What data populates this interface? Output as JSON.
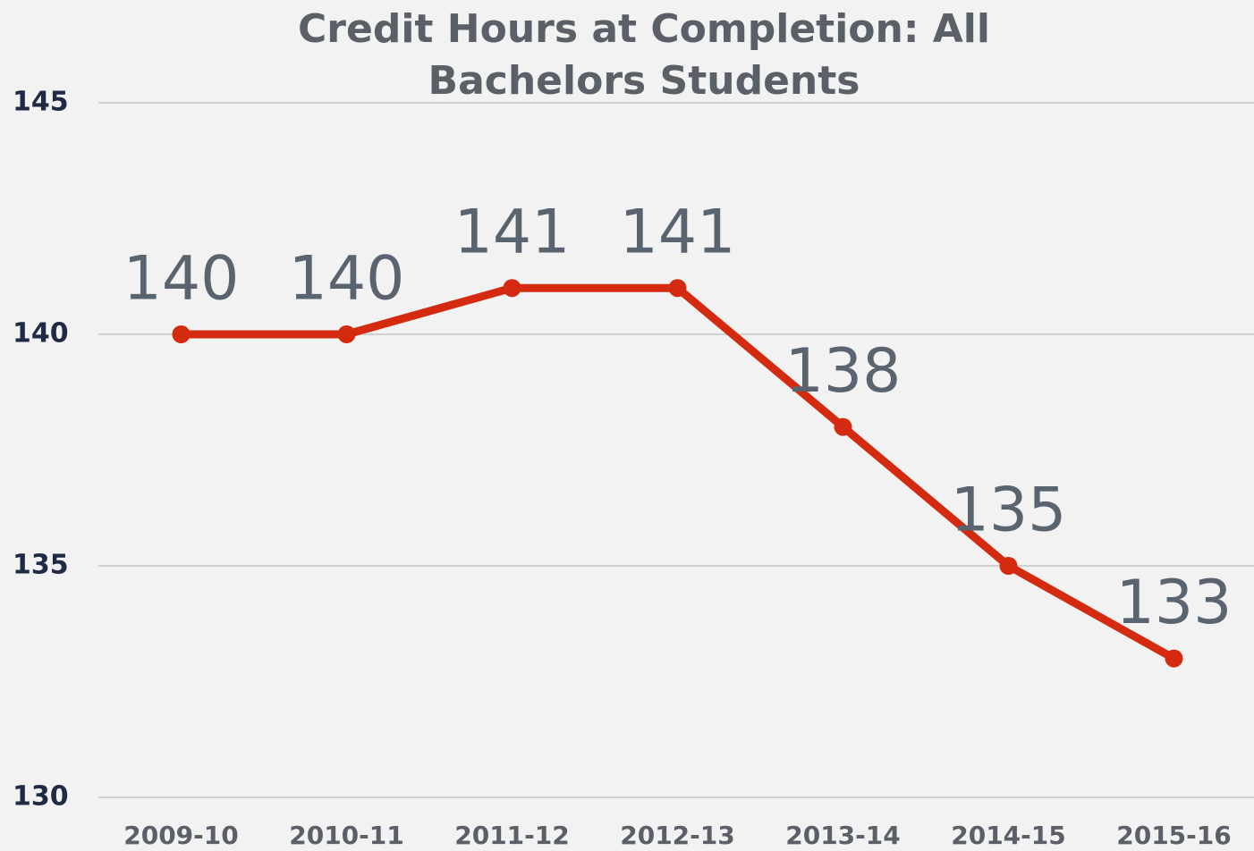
{
  "chart_data": {
    "type": "line",
    "title": "Credit Hours at Completion: All Bachelors Students",
    "categories": [
      "2009-10",
      "2010-11",
      "2011-12",
      "2012-13",
      "2013-14",
      "2014-15",
      "2015-16"
    ],
    "series": [
      {
        "name": "Credit Hours",
        "color": "#d42a10",
        "values": [
          140,
          140,
          141,
          141,
          138,
          135,
          133
        ]
      }
    ],
    "ylim": [
      130,
      145
    ],
    "yticks": [
      130,
      135,
      140,
      145
    ],
    "grid": true
  }
}
